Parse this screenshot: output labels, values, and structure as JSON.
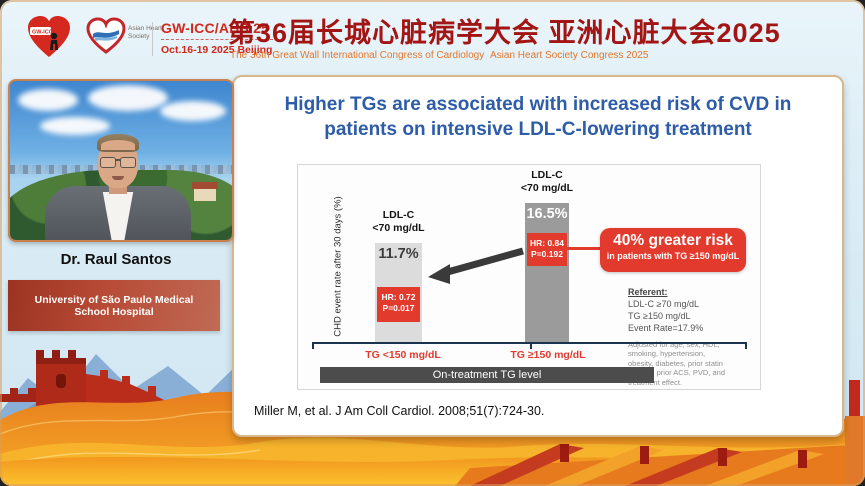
{
  "palette": {
    "accent_red": "#e23b2e",
    "title_blue": "#2d5ca8",
    "header_red": "#d0281c",
    "cn_title_red": "#a31414",
    "subtitle_orange": "#e0762c",
    "banner_red": "#b74b36",
    "band_gray": "#4c4c4c"
  },
  "header": {
    "gwicc_logo": "gw-icc-heart-logo",
    "ahs_logo": "asian-heart-society-heart-logo",
    "ahs_label": "Asian Heart Society",
    "conference_code": "GW-ICC/AHS.25",
    "conference_dates": "Oct.16-19 2025 Beijing",
    "title_cn": "第36届长城心脏病学大会 亚洲心脏大会2025",
    "subtitle_en_left": "The 36th Great Wall International Congress of Cardiology",
    "subtitle_en_right": "Asian Heart Society Congress 2025"
  },
  "speaker": {
    "name": "Dr. Raul Santos",
    "affiliation": "University of São Paulo Medical School Hospital"
  },
  "slide": {
    "title_line1": "Higher TGs are associated with increased risk of CVD in",
    "title_line2": "patients on intensive LDL-C-lowering treatment",
    "citation": "Miller M, et al. J Am Coll Cardiol. 2008;51(7):724-30."
  },
  "chart_data": {
    "type": "bar",
    "title": "",
    "ylabel": "CHD event rate after 30 days (%)",
    "xlabel": "On-treatment TG level",
    "categories": [
      "TG <150 mg/dL",
      "TG  ≥150 mg/dL"
    ],
    "values": [
      11.7,
      16.5
    ],
    "ylim": [
      0,
      20
    ],
    "grid": false,
    "bars": [
      {
        "group_label_line1": "LDL-C",
        "group_label_line2": "<70 mg/dL",
        "value_label": "11.7%",
        "hr_line1": "HR: 0.72",
        "hr_line2": "P=0.017",
        "color": "#dcdcdc"
      },
      {
        "group_label_line1": "LDL-C",
        "group_label_line2": "<70 mg/dL",
        "value_label": "16.5%",
        "hr_line1": "HR: 0.84",
        "hr_line2": "P=0.192",
        "color": "#9b9b9b"
      }
    ],
    "callout": {
      "headline": "40% greater risk",
      "subline": "in patients with TG ≥150 mg/dL"
    },
    "referent": {
      "title": "Referent:",
      "line1": "LDL-C ≥70 mg/dL",
      "line2": "TG ≥150 mg/dL",
      "line3": "Event Rate=17.9%"
    },
    "adjusted_note": "Adjusted for age, sex, HDL, smoking, hypertension, obesity, diabetes, prior statin therapy, prior ACS, PVD, and treatment effect.",
    "annotation_colors": {
      "hr_box": "#e23b2e",
      "callout": "#e23b2e"
    }
  }
}
